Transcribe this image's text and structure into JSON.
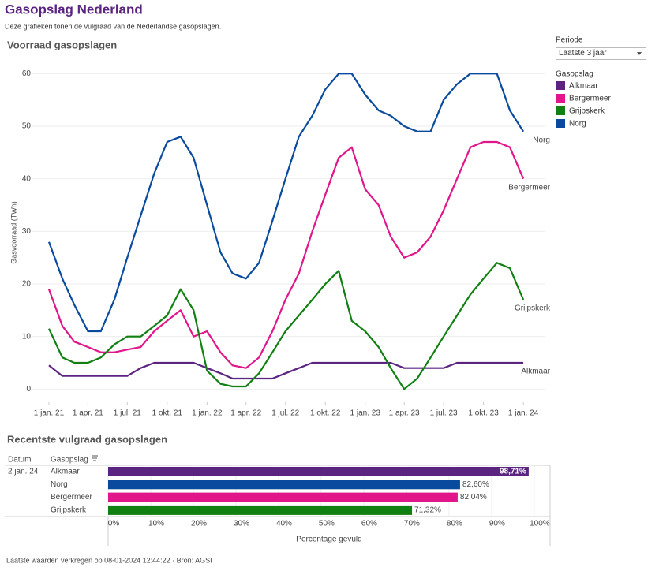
{
  "header": {
    "title": "Gasopslag Nederland",
    "subtitle": "Deze grafieken tonen de vulgraad van de Nederlandse gasopslagen."
  },
  "filter": {
    "label": "Periode",
    "value": "Laatste 3 jaar"
  },
  "chart_data": [
    {
      "type": "line",
      "title": "Voorraad gasopslagen",
      "ylabel": "Gasvoorraad (TWh)",
      "legend_title": "Gasopslag",
      "legend": "right",
      "grid": true,
      "x": [
        "2021-01-01",
        "2021-02-01",
        "2021-03-01",
        "2021-04-01",
        "2021-05-01",
        "2021-06-01",
        "2021-07-01",
        "2021-08-01",
        "2021-09-01",
        "2021-10-01",
        "2021-11-01",
        "2021-12-01",
        "2022-01-01",
        "2022-02-01",
        "2022-03-01",
        "2022-04-01",
        "2022-05-01",
        "2022-06-01",
        "2022-07-01",
        "2022-08-01",
        "2022-09-01",
        "2022-10-01",
        "2022-11-01",
        "2022-12-01",
        "2023-01-01",
        "2023-02-01",
        "2023-03-01",
        "2023-04-01",
        "2023-05-01",
        "2023-06-01",
        "2023-07-01",
        "2023-08-01",
        "2023-09-01",
        "2023-10-01",
        "2023-11-01",
        "2023-12-01",
        "2024-01-01"
      ],
      "xlim": [
        "2020-11-22",
        "2024-02-19"
      ],
      "xticks": [
        {
          "value": "2021-01-01",
          "label": "1 jan. 21"
        },
        {
          "value": "2021-04-01",
          "label": "1 apr. 21"
        },
        {
          "value": "2021-07-01",
          "label": "1 jul. 21"
        },
        {
          "value": "2021-10-01",
          "label": "1 okt. 21"
        },
        {
          "value": "2022-01-01",
          "label": "1 jan. 22"
        },
        {
          "value": "2022-04-01",
          "label": "1 apr. 22"
        },
        {
          "value": "2022-07-01",
          "label": "1 jul. 22"
        },
        {
          "value": "2022-10-01",
          "label": "1 okt. 22"
        },
        {
          "value": "2023-01-01",
          "label": "1 jan. 23"
        },
        {
          "value": "2023-04-01",
          "label": "1 apr. 23"
        },
        {
          "value": "2023-07-01",
          "label": "1 jul. 23"
        },
        {
          "value": "2023-10-01",
          "label": "1 okt. 23"
        },
        {
          "value": "2024-01-01",
          "label": "1 jan. 24"
        }
      ],
      "ylim": [
        -2.5,
        62
      ],
      "yticks": [
        0,
        10,
        20,
        30,
        40,
        50,
        60
      ],
      "series": [
        {
          "name": "Alkmaar",
          "color": "#5b2480",
          "values": [
            4.5,
            2.5,
            2.5,
            2.5,
            2.5,
            2.5,
            2.5,
            4,
            5,
            5,
            5,
            5,
            4,
            3,
            2,
            2,
            2,
            2,
            3,
            4,
            5,
            5,
            5,
            5,
            5,
            5,
            5,
            4,
            4,
            4,
            4,
            5,
            5,
            5,
            5,
            5,
            5
          ]
        },
        {
          "name": "Bergermeer",
          "color": "#e0168a",
          "values": [
            19,
            12,
            9,
            8,
            7,
            7,
            7.5,
            8,
            11,
            13,
            15,
            10,
            11,
            7,
            4.5,
            4,
            6,
            11,
            17,
            22,
            30,
            37,
            44,
            46,
            38,
            35,
            29,
            25,
            26,
            29,
            34,
            40,
            46,
            47,
            47,
            46,
            40
          ]
        },
        {
          "name": "Grijpskerk",
          "color": "#118012",
          "values": [
            11.5,
            6,
            5,
            5,
            6,
            8.5,
            10,
            10,
            12,
            14,
            19,
            15,
            3.5,
            1,
            0.5,
            0.5,
            3,
            7,
            11,
            14,
            17,
            20,
            22.5,
            13,
            11,
            8,
            4,
            0,
            2,
            6,
            10,
            14,
            18,
            21,
            24,
            23,
            17
          ]
        },
        {
          "name": "Norg",
          "color": "#0a4a9e",
          "values": [
            28,
            21,
            16,
            11,
            11,
            17,
            25,
            33,
            41,
            47,
            48,
            44,
            35,
            26,
            22,
            21,
            24,
            32,
            40,
            48,
            52,
            57,
            60,
            60,
            56,
            53,
            52,
            50,
            49,
            49,
            55,
            58,
            60,
            60,
            60,
            53,
            49
          ]
        }
      ]
    },
    {
      "type": "bar",
      "title": "Recentste vulgraad gasopslagen",
      "xlabel": "Percentage gevuld",
      "categories": [
        "Alkmaar",
        "Norg",
        "Bergermeer",
        "Grijpskerk"
      ],
      "colors": [
        "#5b2480",
        "#0a4a9e",
        "#e0168a",
        "#118012"
      ],
      "values": [
        98.71,
        82.6,
        82.04,
        71.32
      ],
      "value_labels": [
        "98,71%",
        "82,60%",
        "82,04%",
        "71,32%"
      ],
      "xlim": [
        0,
        102.8
      ],
      "xticks": [
        {
          "value": 0,
          "label": "0%"
        },
        {
          "value": 10,
          "label": "10%"
        },
        {
          "value": 20,
          "label": "20%"
        },
        {
          "value": 30,
          "label": "30%"
        },
        {
          "value": 40,
          "label": "40%"
        },
        {
          "value": 50,
          "label": "50%"
        },
        {
          "value": 60,
          "label": "60%"
        },
        {
          "value": 70,
          "label": "70%"
        },
        {
          "value": 80,
          "label": "80%"
        },
        {
          "value": 90,
          "label": "90%"
        },
        {
          "value": 100,
          "label": "100%"
        }
      ]
    }
  ],
  "table": {
    "columns": [
      "Datum",
      "Gasopslag"
    ],
    "date": "2 jan. 24"
  },
  "footer": "Laatste waarden verkregen op 08-01-2024 12:44:22 · Bron: AGSI"
}
